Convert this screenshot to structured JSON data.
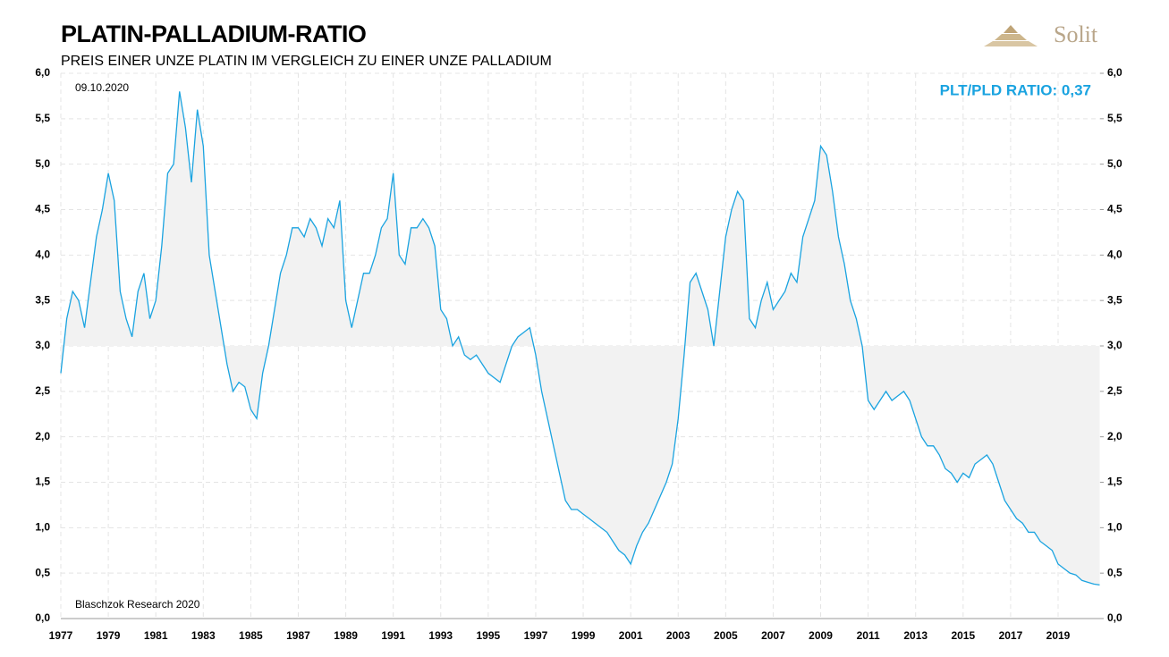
{
  "chart_data": {
    "type": "line",
    "title": "PLATIN-PALLADIUM-RATIO",
    "subtitle": "PREIS EINER UNZE PLATIN IM VERGLEICH ZU EINER UNZE PALLADIUM",
    "annotations": {
      "date": "09.10.2020",
      "source": "Blaschzok Research 2020",
      "current": "PLT/PLD RATIO: 0,37"
    },
    "x": [
      1977,
      1977.25,
      1977.5,
      1977.75,
      1978,
      1978.25,
      1978.5,
      1978.75,
      1979,
      1979.25,
      1979.5,
      1979.75,
      1980,
      1980.25,
      1980.5,
      1980.75,
      1981,
      1981.25,
      1981.5,
      1981.75,
      1982,
      1982.25,
      1982.5,
      1982.75,
      1983,
      1983.25,
      1983.5,
      1983.75,
      1984,
      1984.25,
      1984.5,
      1984.75,
      1985,
      1985.25,
      1985.5,
      1985.75,
      1986,
      1986.25,
      1986.5,
      1986.75,
      1987,
      1987.25,
      1987.5,
      1987.75,
      1988,
      1988.25,
      1988.5,
      1988.75,
      1989,
      1989.25,
      1989.5,
      1989.75,
      1990,
      1990.25,
      1990.5,
      1990.75,
      1991,
      1991.25,
      1991.5,
      1991.75,
      1992,
      1992.25,
      1992.5,
      1992.75,
      1993,
      1993.25,
      1993.5,
      1993.75,
      1994,
      1994.25,
      1994.5,
      1994.75,
      1995,
      1995.25,
      1995.5,
      1995.75,
      1996,
      1996.25,
      1996.5,
      1996.75,
      1997,
      1997.25,
      1997.5,
      1997.75,
      1998,
      1998.25,
      1998.5,
      1998.75,
      1999,
      1999.25,
      1999.5,
      1999.75,
      2000,
      2000.25,
      2000.5,
      2000.75,
      2001,
      2001.25,
      2001.5,
      2001.75,
      2002,
      2002.25,
      2002.5,
      2002.75,
      2003,
      2003.25,
      2003.5,
      2003.75,
      2004,
      2004.25,
      2004.5,
      2004.75,
      2005,
      2005.25,
      2005.5,
      2005.75,
      2006,
      2006.25,
      2006.5,
      2006.75,
      2007,
      2007.25,
      2007.5,
      2007.75,
      2008,
      2008.25,
      2008.5,
      2008.75,
      2009,
      2009.25,
      2009.5,
      2009.75,
      2010,
      2010.25,
      2010.5,
      2010.75,
      2011,
      2011.25,
      2011.5,
      2011.75,
      2012,
      2012.25,
      2012.5,
      2012.75,
      2013,
      2013.25,
      2013.5,
      2013.75,
      2014,
      2014.25,
      2014.5,
      2014.75,
      2015,
      2015.25,
      2015.5,
      2015.75,
      2016,
      2016.25,
      2016.5,
      2016.75,
      2017,
      2017.25,
      2017.5,
      2017.75,
      2018,
      2018.25,
      2018.5,
      2018.75,
      2019,
      2019.25,
      2019.5,
      2019.75,
      2020,
      2020.25,
      2020.5,
      2020.75
    ],
    "series": [
      {
        "name": "PLT/PLD Ratio",
        "color": "#1aa3e0",
        "values": [
          2.7,
          3.3,
          3.6,
          3.5,
          3.2,
          3.7,
          4.2,
          4.5,
          4.9,
          4.6,
          3.6,
          3.3,
          3.1,
          3.6,
          3.8,
          3.3,
          3.5,
          4.1,
          4.9,
          5.0,
          5.8,
          5.4,
          4.8,
          5.6,
          5.2,
          4.0,
          3.6,
          3.2,
          2.8,
          2.5,
          2.6,
          2.55,
          2.3,
          2.2,
          2.7,
          3.0,
          3.4,
          3.8,
          4.0,
          4.3,
          4.3,
          4.2,
          4.4,
          4.3,
          4.1,
          4.4,
          4.3,
          4.6,
          3.5,
          3.2,
          3.5,
          3.8,
          3.8,
          4.0,
          4.3,
          4.4,
          4.9,
          4.0,
          3.9,
          4.3,
          4.3,
          4.4,
          4.3,
          4.1,
          3.4,
          3.3,
          3.0,
          3.1,
          2.9,
          2.85,
          2.9,
          2.8,
          2.7,
          2.65,
          2.6,
          2.8,
          3.0,
          3.1,
          3.15,
          3.2,
          2.9,
          2.5,
          2.2,
          1.9,
          1.6,
          1.3,
          1.2,
          1.2,
          1.15,
          1.1,
          1.05,
          1.0,
          0.95,
          0.85,
          0.75,
          0.7,
          0.6,
          0.8,
          0.95,
          1.05,
          1.2,
          1.35,
          1.5,
          1.7,
          2.2,
          2.9,
          3.7,
          3.8,
          3.6,
          3.4,
          3.0,
          3.6,
          4.2,
          4.5,
          4.7,
          4.6,
          3.3,
          3.2,
          3.5,
          3.7,
          3.4,
          3.5,
          3.6,
          3.8,
          3.7,
          4.2,
          4.4,
          4.6,
          5.2,
          5.1,
          4.7,
          4.2,
          3.9,
          3.5,
          3.3,
          3.0,
          2.4,
          2.3,
          2.4,
          2.5,
          2.4,
          2.45,
          2.5,
          2.4,
          2.2,
          2.0,
          1.9,
          1.9,
          1.8,
          1.65,
          1.6,
          1.5,
          1.6,
          1.55,
          1.7,
          1.75,
          1.8,
          1.7,
          1.5,
          1.3,
          1.2,
          1.1,
          1.05,
          0.95,
          0.95,
          0.85,
          0.8,
          0.75,
          0.6,
          0.55,
          0.5,
          0.48,
          0.42,
          0.4,
          0.38,
          0.37
        ]
      }
    ],
    "fill_baseline": 3,
    "fill_color": "#f2f2f2",
    "xlim": [
      1977,
      2020.77
    ],
    "xticks": [
      1977,
      1979,
      1981,
      1983,
      1985,
      1987,
      1989,
      1991,
      1993,
      1995,
      1997,
      1999,
      2001,
      2003,
      2005,
      2007,
      2009,
      2011,
      2013,
      2015,
      2017,
      2019
    ],
    "ylim": [
      0,
      6
    ],
    "yticks": [
      {
        "value": 0,
        "label": "0,0"
      },
      {
        "value": 0.5,
        "label": "0,5"
      },
      {
        "value": 1,
        "label": "1,0"
      },
      {
        "value": 1.5,
        "label": "1,5"
      },
      {
        "value": 2,
        "label": "2,0"
      },
      {
        "value": 2.5,
        "label": "2,5"
      },
      {
        "value": 3,
        "label": "3,0"
      },
      {
        "value": 3.5,
        "label": "3,5"
      },
      {
        "value": 4,
        "label": "4,0"
      },
      {
        "value": 4.5,
        "label": "4,5"
      },
      {
        "value": 5,
        "label": "5,0"
      },
      {
        "value": 5.5,
        "label": "5,5"
      },
      {
        "value": 6,
        "label": "6,0"
      }
    ],
    "y2lim": [
      0,
      6
    ],
    "y2ticks": [
      {
        "value": 0,
        "label": "0,0"
      },
      {
        "value": 0.5,
        "label": "0,5"
      },
      {
        "value": 1,
        "label": "1,0"
      },
      {
        "value": 1.5,
        "label": "1,5"
      },
      {
        "value": 2,
        "label": "2,0"
      },
      {
        "value": 2.5,
        "label": "2,5"
      },
      {
        "value": 3,
        "label": "3,0"
      },
      {
        "value": 3.5,
        "label": "3,5"
      },
      {
        "value": 4,
        "label": "4,0"
      },
      {
        "value": 4.5,
        "label": "4,5"
      },
      {
        "value": 5,
        "label": "5,0"
      },
      {
        "value": 5.5,
        "label": "5,5"
      },
      {
        "value": 6,
        "label": "6,0"
      }
    ],
    "grid": true
  },
  "logo": "Solit"
}
